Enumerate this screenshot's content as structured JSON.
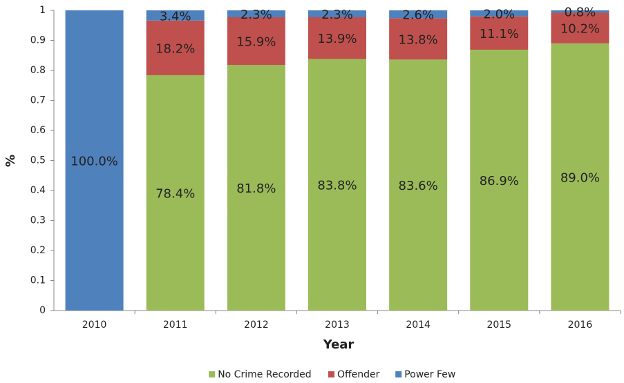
{
  "chart_data": {
    "type": "stacked-bar",
    "xlabel": "Year",
    "ylabel": "%",
    "categories": [
      "2010",
      "2011",
      "2012",
      "2013",
      "2014",
      "2015",
      "2016"
    ],
    "series": [
      {
        "name": "No Crime Recorded",
        "color": "#9bbb59",
        "values": [
          null,
          0.784,
          0.818,
          0.838,
          0.836,
          0.869,
          0.89
        ],
        "value_labels": [
          null,
          "78.4%",
          "81.8%",
          "83.8%",
          "83.6%",
          "86.9%",
          "89.0%"
        ]
      },
      {
        "name": "Offender",
        "color": "#c0504d",
        "values": [
          null,
          0.182,
          0.159,
          0.139,
          0.138,
          0.111,
          0.102
        ],
        "value_labels": [
          null,
          "18.2%",
          "15.9%",
          "13.9%",
          "13.8%",
          "11.1%",
          "10.2%"
        ]
      },
      {
        "name": "Power Few",
        "color": "#4f81bd",
        "values": [
          1.0,
          0.034,
          0.023,
          0.023,
          0.026,
          0.02,
          0.008
        ],
        "value_labels": [
          "100.0%",
          "3.4%",
          "2.3%",
          "2.3%",
          "2.6%",
          "2.0%",
          "0.8%"
        ]
      }
    ],
    "ylim": [
      0,
      1
    ],
    "yticks": [
      0,
      0.1,
      0.2,
      0.3,
      0.4,
      0.5,
      0.6,
      0.7,
      0.8,
      0.9,
      1
    ],
    "grid": false,
    "legend": "bottom"
  }
}
